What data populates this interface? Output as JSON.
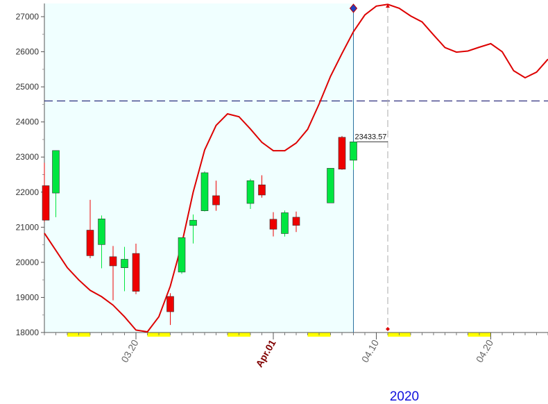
{
  "chart_data": {
    "type": "candlestick",
    "x": [
      "2020-03-12",
      "2020-03-13",
      "2020-03-16",
      "2020-03-17",
      "2020-03-18",
      "2020-03-19",
      "2020-03-20",
      "2020-03-23",
      "2020-03-24",
      "2020-03-25",
      "2020-03-26",
      "2020-03-27",
      "2020-03-30",
      "2020-03-31",
      "2020-04-01",
      "2020-04-02",
      "2020-04-03",
      "2020-04-06",
      "2020-04-07",
      "2020-04-08"
    ],
    "open": [
      22184,
      21974,
      20917,
      20505,
      20160,
      19845,
      20253,
      19028,
      19722,
      21050,
      21468,
      21898,
      21678,
      22208,
      21227,
      20819,
      21285,
      21693,
      23563,
      22909
    ],
    "high": [
      22837,
      23186,
      21780,
      21335,
      20465,
      20440,
      20531,
      19121,
      20704,
      21362,
      22595,
      22327,
      22378,
      22479,
      21430,
      21477,
      21447,
      22680,
      23600,
      23436
    ],
    "low": [
      21154,
      21285,
      20116,
      19829,
      18917,
      19177,
      19094,
      18214,
      19672,
      20538,
      21449,
      21469,
      21522,
      21843,
      20736,
      20735,
      20863,
      21693,
      22635,
      22637
    ],
    "close": [
      21200,
      23185,
      20188,
      21237,
      19899,
      20087,
      19174,
      18592,
      20704,
      21200,
      22552,
      21637,
      22327,
      21917,
      20943,
      21413,
      21053,
      22680,
      22654,
      23433.57
    ],
    "up_color": "#00e640",
    "down_color": "#ee0000",
    "projection": {
      "x": [
        "2020-03-12",
        "2020-03-13",
        "2020-03-14",
        "2020-03-15",
        "2020-03-16",
        "2020-03-17",
        "2020-03-18",
        "2020-03-19",
        "2020-03-20",
        "2020-03-21",
        "2020-03-22",
        "2020-03-23",
        "2020-03-24",
        "2020-03-25",
        "2020-03-26",
        "2020-03-27",
        "2020-03-28",
        "2020-03-29",
        "2020-03-30",
        "2020-03-31",
        "2020-04-01",
        "2020-04-02",
        "2020-04-03",
        "2020-04-04",
        "2020-04-05",
        "2020-04-06",
        "2020-04-07",
        "2020-04-08",
        "2020-04-09",
        "2020-04-10",
        "2020-04-11",
        "2020-04-12",
        "2020-04-13",
        "2020-04-14",
        "2020-04-15",
        "2020-04-16",
        "2020-04-17",
        "2020-04-18",
        "2020-04-19",
        "2020-04-20",
        "2020-04-21",
        "2020-04-22",
        "2020-04-23",
        "2020-04-24",
        "2020-04-25"
      ],
      "values": [
        20830,
        20340,
        19850,
        19500,
        19200,
        19020,
        18780,
        18450,
        18070,
        18020,
        18450,
        19320,
        20520,
        22000,
        23200,
        23900,
        24230,
        24150,
        23800,
        23420,
        23180,
        23180,
        23400,
        23790,
        24510,
        25300,
        25950,
        26570,
        27050,
        27300,
        27350,
        27240,
        27020,
        26850,
        26480,
        26120,
        25990,
        26020,
        26130,
        26230,
        26000,
        25460,
        25260,
        25420,
        25790
      ],
      "color": "#dd0000"
    },
    "reference_level": 24600,
    "cursor_date": "2020-04-08",
    "marker_date": "2020-04-11",
    "xlim": [
      "2020-03-12",
      "2020-04-25"
    ],
    "xticks": [
      {
        "value": "2020-03-20",
        "label": "03.20"
      },
      {
        "value": "2020-04-01",
        "label": "Apr.01"
      },
      {
        "value": "2020-04-10",
        "label": "04.10"
      },
      {
        "value": "2020-04-20",
        "label": "04.20"
      }
    ],
    "highlight_xtick": 1,
    "year_label": "2020",
    "ylim": [
      18000,
      27000
    ],
    "yticks": [
      18000,
      19000,
      20000,
      21000,
      22000,
      23000,
      24000,
      25000,
      26000,
      27000
    ]
  }
}
